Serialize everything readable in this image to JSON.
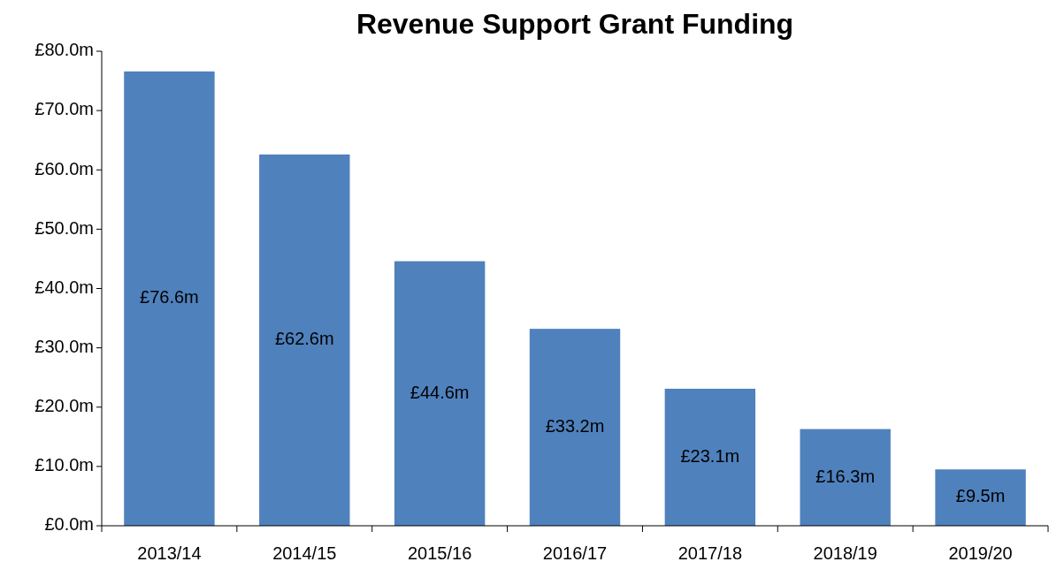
{
  "chart_data": {
    "type": "bar",
    "title": "Revenue Support Grant Funding",
    "categories": [
      "2013/14",
      "2014/15",
      "2015/16",
      "2016/17",
      "2017/18",
      "2018/19",
      "2019/20"
    ],
    "values": [
      76.6,
      62.6,
      44.6,
      33.2,
      23.1,
      16.3,
      9.5
    ],
    "value_labels": [
      "£76.6m",
      "£62.6m",
      "£44.6m",
      "£33.2m",
      "£23.1m",
      "£16.3m",
      "£9.5m"
    ],
    "color": "#4f81bd",
    "ylim": [
      0,
      80
    ],
    "yticks": [
      {
        "value": 0,
        "label": "£0.0m"
      },
      {
        "value": 10,
        "label": "£10.0m"
      },
      {
        "value": 20,
        "label": "£20.0m"
      },
      {
        "value": 30,
        "label": "£30.0m"
      },
      {
        "value": 40,
        "label": "£40.0m"
      },
      {
        "value": 50,
        "label": "£50.0m"
      },
      {
        "value": 60,
        "label": "£60.0m"
      },
      {
        "value": 70,
        "label": "£70.0m"
      },
      {
        "value": 80,
        "label": "£80.0m"
      }
    ],
    "grid": false
  }
}
